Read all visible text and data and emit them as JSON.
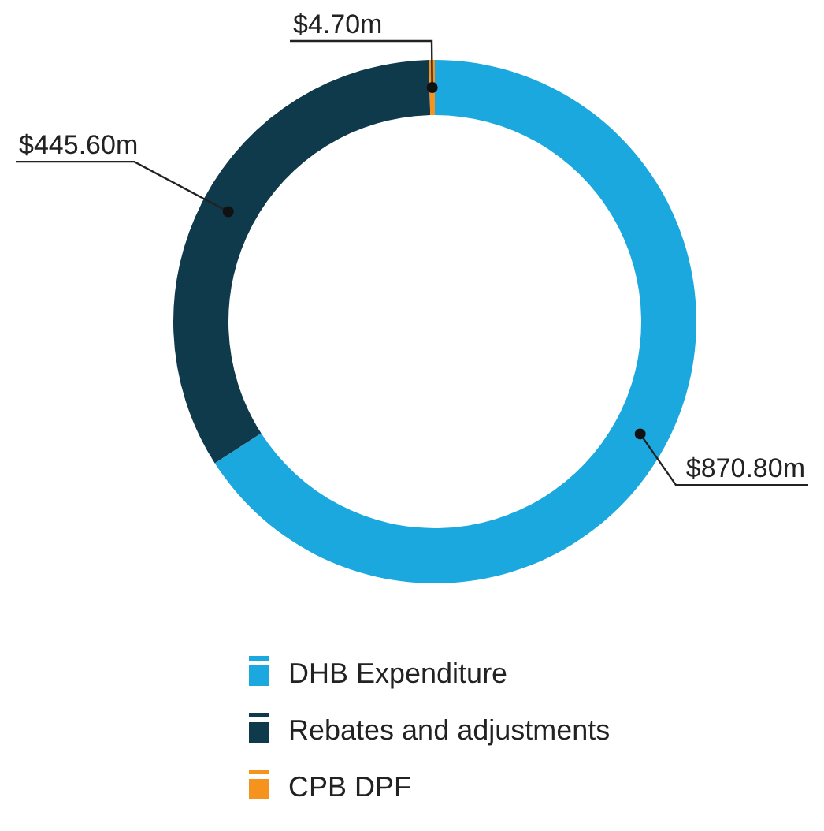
{
  "chart_data": {
    "type": "donut",
    "categories": [
      "DHB Expenditure",
      "Rebates and adjustments",
      "CPB DPF"
    ],
    "values": [
      870.8,
      445.6,
      4.7
    ],
    "colors": [
      "#1ba8de",
      "#0e3a4b",
      "#f6921e"
    ],
    "value_labels": [
      "$870.80m",
      "$445.60m",
      "$4.70m"
    ],
    "legend": "bottom"
  }
}
